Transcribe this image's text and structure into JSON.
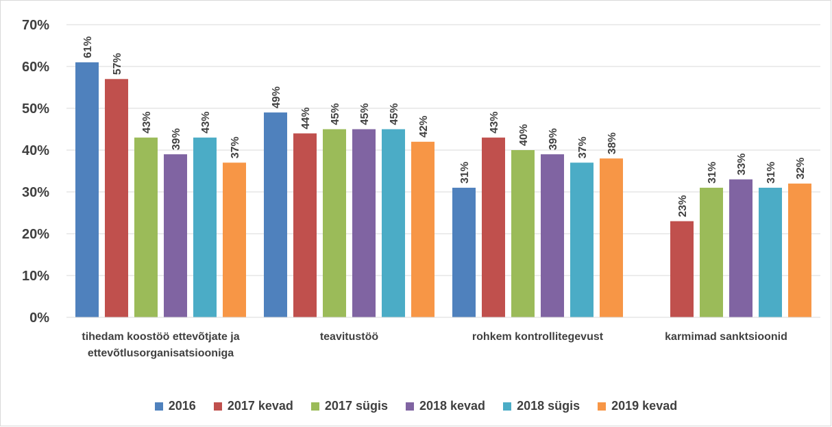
{
  "chart_data": {
    "type": "bar",
    "categories": [
      "tihedam koostöö ettevõtjate ja ettevõtlusorganisatsiooniga",
      "teavitustöö",
      "rohkem kontrollitegevust",
      "karmimad sanktsioonid"
    ],
    "series": [
      {
        "name": "2016",
        "color": "#4f81bd",
        "values": [
          61,
          49,
          31,
          null
        ],
        "value_labels": [
          "61%",
          "49%",
          "31%",
          null
        ]
      },
      {
        "name": "2017 kevad",
        "color": "#c0504d",
        "values": [
          57,
          44,
          43,
          23
        ],
        "value_labels": [
          "57%",
          "44%",
          "43%",
          "23%"
        ]
      },
      {
        "name": "2017 sügis",
        "color": "#9bbb59",
        "values": [
          43,
          45,
          40,
          31
        ],
        "value_labels": [
          "43%",
          "45%",
          "40%",
          "31%"
        ]
      },
      {
        "name": "2018 kevad",
        "color": "#8064a2",
        "values": [
          39,
          45,
          39,
          33
        ],
        "value_labels": [
          "39%",
          "45%",
          "39%",
          "33%"
        ]
      },
      {
        "name": "2018 sügis",
        "color": "#4bacc6",
        "values": [
          43,
          45,
          37,
          31
        ],
        "value_labels": [
          "43%",
          "45%",
          "37%",
          "31%"
        ]
      },
      {
        "name": "2019 kevad",
        "color": "#f79646",
        "values": [
          37,
          42,
          38,
          32
        ],
        "value_labels": [
          "37%",
          "42%",
          "38%",
          "32%"
        ]
      }
    ],
    "ylim": [
      0,
      70
    ],
    "yticks": [
      {
        "value": 0,
        "label": "0%"
      },
      {
        "value": 10,
        "label": "10%"
      },
      {
        "value": 20,
        "label": "20%"
      },
      {
        "value": 30,
        "label": "30%"
      },
      {
        "value": 40,
        "label": "40%"
      },
      {
        "value": 50,
        "label": "50%"
      },
      {
        "value": 60,
        "label": "60%"
      },
      {
        "value": 70,
        "label": "70%"
      }
    ],
    "grid": true,
    "legend": "bottom"
  }
}
